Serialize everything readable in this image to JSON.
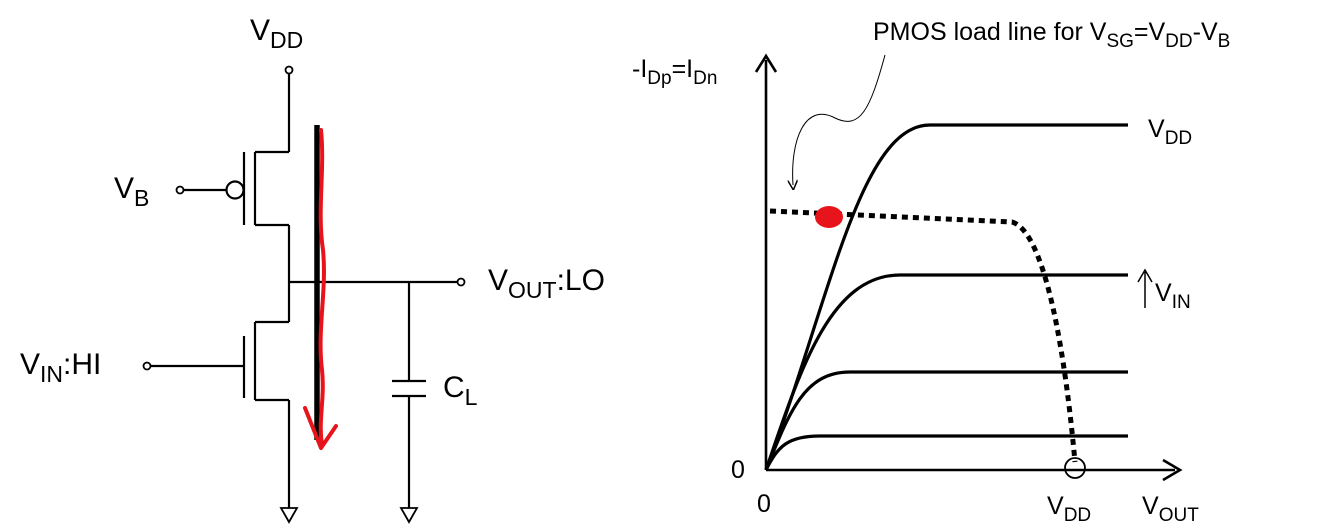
{
  "circuit": {
    "vdd": {
      "main": "V",
      "sub": "DD"
    },
    "vb": {
      "main": "V",
      "sub": "B"
    },
    "vout": {
      "main": "V",
      "sub": "OUT",
      "suffix": ":LO"
    },
    "vin": {
      "main": "V",
      "sub": "IN",
      "suffix": ":HI"
    },
    "cl": {
      "main": "C",
      "sub": "L"
    },
    "current_arrow_color": "#e8141b"
  },
  "plot": {
    "annotation": {
      "text": "PMOS load line for V",
      "sub1": "SG",
      "mid": "=V",
      "sub2": "DD",
      "mid2": "-V",
      "sub3": "B"
    },
    "ylabel": {
      "p1": "-I",
      "s1": "Dp",
      "p2": "=I",
      "s2": "Dn"
    },
    "xlabel": {
      "main": "V",
      "sub": "OUT"
    },
    "origin_x": "0",
    "origin_y": "0",
    "xtick_vdd": {
      "main": "V",
      "sub": "DD"
    },
    "curve_labels": {
      "top": {
        "main": "V",
        "sub": "DD"
      },
      "vin_arrow": {
        "main": "V",
        "sub": "IN"
      }
    },
    "operating_point_color": "#e8141b"
  },
  "chart_data": {
    "type": "line",
    "title": "",
    "xlabel": "V_OUT",
    "ylabel": "-I_Dp=I_Dn",
    "x_ticks": [
      "0",
      "V_DD"
    ],
    "y_ticks": [
      "0"
    ],
    "series": [
      {
        "name": "V_DD",
        "kind": "nmos",
        "saturation_level": 0.93
      },
      {
        "kind": "nmos",
        "saturation_level": 0.56
      },
      {
        "kind": "nmos",
        "saturation_level": 0.3
      },
      {
        "kind": "nmos",
        "saturation_level": 0.1
      },
      {
        "name": "PMOS load line for V_SG=V_DD-V_B",
        "kind": "pmos_load",
        "style": "dotted",
        "level": 0.73,
        "ends_at": "V_DD"
      }
    ],
    "operating_point": {
      "on_curve": "V_DD",
      "marker": "filled-red-dot"
    }
  }
}
